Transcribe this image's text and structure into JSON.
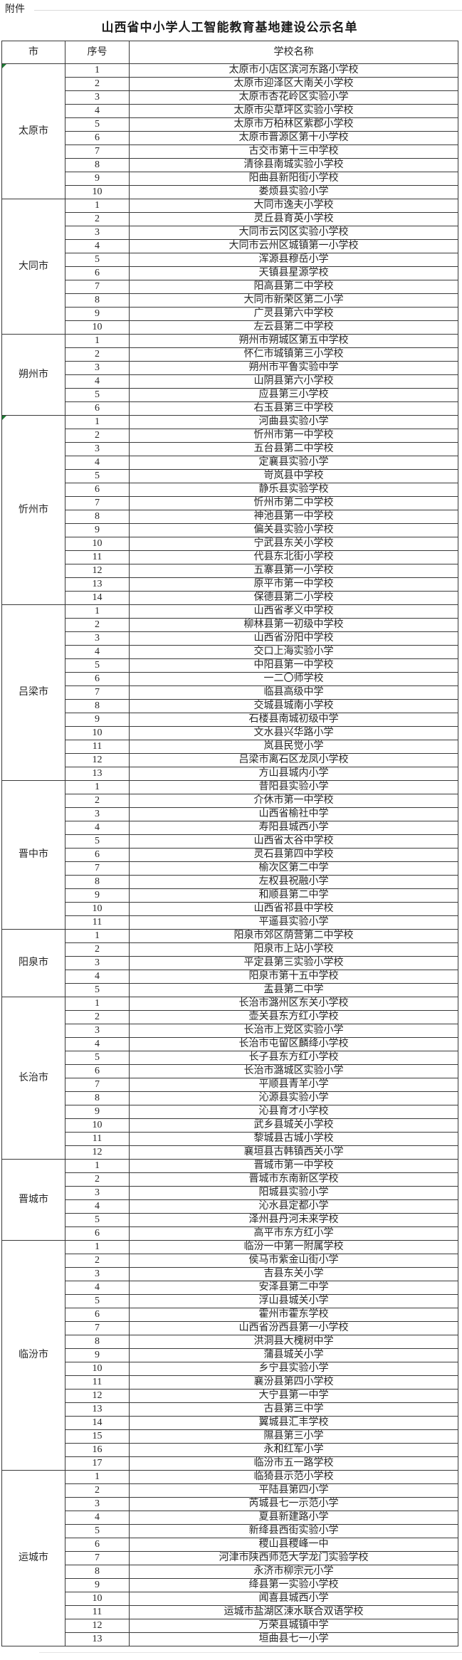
{
  "attachment_label": "附件",
  "title": "山西省中小学人工智能教育基地建设公示名单",
  "colors": {
    "border": "#3a3a3a",
    "note_marker_green": "#1e7b34",
    "background": "#ffffff"
  },
  "table": {
    "headers": [
      "市",
      "序号",
      "学校名称"
    ],
    "groups": [
      {
        "city": "太原市",
        "corner_marker": true,
        "rows": [
          {
            "no": "1",
            "school": "太原市小店区滨河东路小学校"
          },
          {
            "no": "2",
            "school": "太原市迎泽区大南关小学校"
          },
          {
            "no": "3",
            "school": "太原市杏花岭区实验小学"
          },
          {
            "no": "4",
            "school": "太原市尖草坪区实验小学校"
          },
          {
            "no": "5",
            "school": "太原市万柏林区紫郡小学校"
          },
          {
            "no": "6",
            "school": "太原市晋源区第十小学校"
          },
          {
            "no": "7",
            "school": "古交市第十三中学校"
          },
          {
            "no": "8",
            "school": "清徐县南城实验小学校"
          },
          {
            "no": "9",
            "school": "阳曲县新阳街小学校"
          },
          {
            "no": "10",
            "school": "娄烦县实验小学"
          }
        ]
      },
      {
        "city": "大同市",
        "corner_marker": false,
        "rows": [
          {
            "no": "1",
            "school": "大同市逸夫小学校"
          },
          {
            "no": "2",
            "school": "灵丘县育英小学校"
          },
          {
            "no": "3",
            "school": "大同市云冈区实验小学校"
          },
          {
            "no": "4",
            "school": "大同市云州区城镇第一小学校"
          },
          {
            "no": "5",
            "school": "浑源县穆岳小学"
          },
          {
            "no": "6",
            "school": "天镇县星源学校"
          },
          {
            "no": "7",
            "school": "阳高县第二中学校"
          },
          {
            "no": "8",
            "school": "大同市新荣区第二小学"
          },
          {
            "no": "9",
            "school": "广灵县第六中学校"
          },
          {
            "no": "10",
            "school": "左云县第二中学校"
          }
        ]
      },
      {
        "city": "朔州市",
        "corner_marker": false,
        "rows": [
          {
            "no": "1",
            "school": "朔州市朔城区第五中学校"
          },
          {
            "no": "2",
            "school": "怀仁市城镇第三小学校"
          },
          {
            "no": "3",
            "school": "朔州市平鲁实验中学"
          },
          {
            "no": "4",
            "school": "山阴县第六小学校"
          },
          {
            "no": "5",
            "school": "应县第三小学校"
          },
          {
            "no": "6",
            "school": "右玉县第三中学校"
          }
        ]
      },
      {
        "city": "忻州市",
        "corner_marker": true,
        "rows": [
          {
            "no": "1",
            "school": "河曲县实验小学"
          },
          {
            "no": "2",
            "school": "忻州市第一中学校"
          },
          {
            "no": "3",
            "school": "五台县第二中学校"
          },
          {
            "no": "4",
            "school": "定襄县实验小学"
          },
          {
            "no": "5",
            "school": "岢岚县中学校"
          },
          {
            "no": "6",
            "school": "静乐县实验学校"
          },
          {
            "no": "7",
            "school": "忻州市第二中学校"
          },
          {
            "no": "8",
            "school": "神池县第一中学校"
          },
          {
            "no": "9",
            "school": "偏关县实验小学校"
          },
          {
            "no": "10",
            "school": "宁武县东关小学校"
          },
          {
            "no": "11",
            "school": "代县东北街小学校"
          },
          {
            "no": "12",
            "school": "五寨县第一小学校"
          },
          {
            "no": "13",
            "school": "原平市第一中学校"
          },
          {
            "no": "14",
            "school": "保德县第二小学校"
          }
        ]
      },
      {
        "city": "吕梁市",
        "corner_marker": false,
        "rows": [
          {
            "no": "1",
            "school": "山西省孝义中学校"
          },
          {
            "no": "2",
            "school": "柳林县第一初级中学校"
          },
          {
            "no": "3",
            "school": "山西省汾阳中学校"
          },
          {
            "no": "4",
            "school": "交口上海实验小学"
          },
          {
            "no": "5",
            "school": "中阳县第一中学校"
          },
          {
            "no": "6",
            "school": "一二〇师学校"
          },
          {
            "no": "7",
            "school": "临县高级中学"
          },
          {
            "no": "8",
            "school": "交城县城南小学校"
          },
          {
            "no": "9",
            "school": "石楼县南城初级中学"
          },
          {
            "no": "10",
            "school": "文水县兴华路小学"
          },
          {
            "no": "11",
            "school": "岚县民觉小学"
          },
          {
            "no": "12",
            "school": "吕梁市离石区龙凤小学校"
          },
          {
            "no": "13",
            "school": "方山县城内小学"
          }
        ]
      },
      {
        "city": "晋中市",
        "corner_marker": false,
        "rows": [
          {
            "no": "1",
            "school": "昔阳县实验小学"
          },
          {
            "no": "2",
            "school": "介休市第一中学校"
          },
          {
            "no": "3",
            "school": "山西省榆社中学"
          },
          {
            "no": "4",
            "school": "寿阳县城西小学"
          },
          {
            "no": "5",
            "school": "山西省太谷中学校"
          },
          {
            "no": "6",
            "school": "灵石县第四中学校"
          },
          {
            "no": "7",
            "school": "榆次区第二中学"
          },
          {
            "no": "8",
            "school": "左权县祝融小学"
          },
          {
            "no": "9",
            "school": "和顺县第二中学"
          },
          {
            "no": "10",
            "school": "山西省祁县中学校"
          },
          {
            "no": "11",
            "school": "平遥县实验小学"
          }
        ]
      },
      {
        "city": "阳泉市",
        "corner_marker": false,
        "rows": [
          {
            "no": "1",
            "school": "阳泉市郊区荫营第二中学校"
          },
          {
            "no": "2",
            "school": "阳泉市上站小学校"
          },
          {
            "no": "3",
            "school": "平定县第三实验小学校"
          },
          {
            "no": "4",
            "school": "阳泉市第十五中学校"
          },
          {
            "no": "5",
            "school": "盂县第二中学"
          }
        ]
      },
      {
        "city": "长治市",
        "corner_marker": false,
        "rows": [
          {
            "no": "1",
            "school": "长治市潞州区东关小学校"
          },
          {
            "no": "2",
            "school": "壶关县东方红小学校"
          },
          {
            "no": "3",
            "school": "长治市上党区实验小学"
          },
          {
            "no": "4",
            "school": "长治市屯留区麟绛小学校"
          },
          {
            "no": "5",
            "school": "长子县东方红小学校"
          },
          {
            "no": "6",
            "school": "长治市潞城区实验小学"
          },
          {
            "no": "7",
            "school": "平顺县青羊小学"
          },
          {
            "no": "8",
            "school": "沁源县实验小学"
          },
          {
            "no": "9",
            "school": "沁县育才小学校"
          },
          {
            "no": "10",
            "school": "武乡县城关小学校"
          },
          {
            "no": "11",
            "school": "黎城县古城小学校"
          },
          {
            "no": "12",
            "school": "襄垣县古韩镇西关小学"
          }
        ]
      },
      {
        "city": "晋城市",
        "corner_marker": false,
        "rows": [
          {
            "no": "1",
            "school": "晋城市第一中学校"
          },
          {
            "no": "2",
            "school": "晋城市东南新区学校"
          },
          {
            "no": "3",
            "school": "阳城县实验小学"
          },
          {
            "no": "4",
            "school": "沁水县定都小学"
          },
          {
            "no": "5",
            "school": "泽州县丹河未来学校"
          },
          {
            "no": "6",
            "school": "高平市东方红小学"
          }
        ]
      },
      {
        "city": "临汾市",
        "corner_marker": false,
        "rows": [
          {
            "no": "1",
            "school": "临汾一中第一附属学校"
          },
          {
            "no": "2",
            "school": "侯马市紫金山街小学"
          },
          {
            "no": "3",
            "school": "吉县东关小学"
          },
          {
            "no": "4",
            "school": "安泽县第二中学"
          },
          {
            "no": "5",
            "school": "浮山县城关小学"
          },
          {
            "no": "6",
            "school": "霍州市霍东学校"
          },
          {
            "no": "7",
            "school": "山西省汾西县第一小学校"
          },
          {
            "no": "8",
            "school": "洪洞县大槐树中学"
          },
          {
            "no": "9",
            "school": "蒲县城关小学"
          },
          {
            "no": "10",
            "school": "乡宁县实验小学"
          },
          {
            "no": "11",
            "school": "襄汾县第四小学校"
          },
          {
            "no": "12",
            "school": "大宁县第一中学"
          },
          {
            "no": "13",
            "school": "古县第三中学"
          },
          {
            "no": "14",
            "school": "翼城县汇丰学校"
          },
          {
            "no": "15",
            "school": "隰县第三小学"
          },
          {
            "no": "16",
            "school": "永和红军小学"
          },
          {
            "no": "17",
            "school": "临汾市五一路学校"
          }
        ]
      },
      {
        "city": "运城市",
        "corner_marker": false,
        "rows": [
          {
            "no": "1",
            "school": "临猗县示范小学校"
          },
          {
            "no": "2",
            "school": "平陆县第四小学"
          },
          {
            "no": "3",
            "school": "芮城县七一示范小学"
          },
          {
            "no": "4",
            "school": "夏县新建路小学"
          },
          {
            "no": "5",
            "school": "新绛县西街实验小学"
          },
          {
            "no": "6",
            "school": "稷山县稷峰一中"
          },
          {
            "no": "7",
            "school": "河津市陕西师范大学龙门实验学校"
          },
          {
            "no": "8",
            "school": "永济市柳宗元小学"
          },
          {
            "no": "9",
            "school": "绛县第一实验小学校"
          },
          {
            "no": "10",
            "school": "闻喜县城西小学"
          },
          {
            "no": "11",
            "school": "运城市盐湖区涑水联合双语学校"
          },
          {
            "no": "12",
            "school": "万荣县城镇中学"
          },
          {
            "no": "13",
            "school": "垣曲县七一小学"
          }
        ]
      }
    ]
  }
}
